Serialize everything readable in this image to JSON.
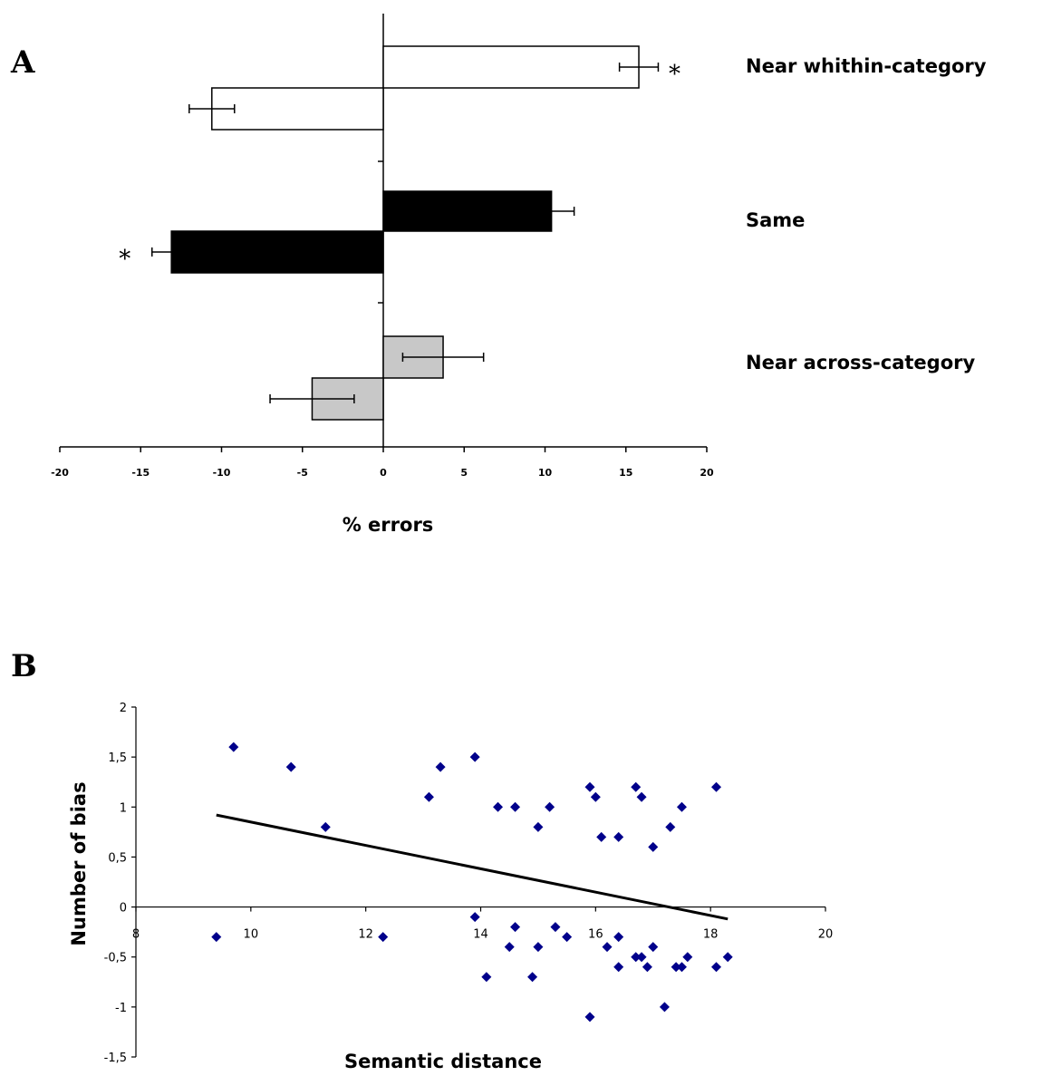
{
  "chart_data": [
    {
      "panel_label": "A",
      "type": "bar",
      "orientation": "horizontal",
      "xlabel": "% errors",
      "xlim": [
        -20,
        20
      ],
      "xticks": [
        "-20",
        "-15",
        "-10",
        "-5",
        "0",
        "5",
        "10",
        "15",
        "20"
      ],
      "categories": [
        "Near whithin-category",
        "Same",
        "Near across-category"
      ],
      "bars": [
        {
          "category": "Near whithin-category",
          "direction": "positive",
          "value": 15.8,
          "error": 1.2,
          "significant": true,
          "fill": "#ffffff"
        },
        {
          "category": "Near whithin-category",
          "direction": "negative",
          "value": -10.6,
          "error": 1.4,
          "significant": false,
          "fill": "#ffffff"
        },
        {
          "category": "Same",
          "direction": "positive",
          "value": 10.4,
          "error": 1.4,
          "significant": false,
          "fill": "#000000"
        },
        {
          "category": "Same",
          "direction": "negative",
          "value": -13.1,
          "error": 1.2,
          "significant": true,
          "fill": "#000000"
        },
        {
          "category": "Near across-category",
          "direction": "positive",
          "value": 3.7,
          "error": 2.5,
          "significant": false,
          "fill": "#c8c8c8"
        },
        {
          "category": "Near across-category",
          "direction": "negative",
          "value": -4.4,
          "error": 2.6,
          "significant": false,
          "fill": "#c8c8c8"
        }
      ],
      "significance_marker": "*"
    },
    {
      "panel_label": "B",
      "type": "scatter",
      "xlabel": "Semantic distance",
      "ylabel": "Number of bias",
      "xlim": [
        8,
        20
      ],
      "ylim": [
        -1.5,
        2
      ],
      "xticks": [
        "8",
        "10",
        "12",
        "14",
        "16",
        "18",
        "20"
      ],
      "yticks": [
        "2",
        "1,5",
        "1",
        "0,5",
        "0",
        "-0,5",
        "-1",
        "-1,5"
      ],
      "marker_color": "#00008b",
      "points": [
        {
          "x": 9.4,
          "y": -0.3
        },
        {
          "x": 9.7,
          "y": 1.6
        },
        {
          "x": 10.7,
          "y": 1.4
        },
        {
          "x": 11.3,
          "y": 0.8
        },
        {
          "x": 12.3,
          "y": -0.3
        },
        {
          "x": 13.1,
          "y": 1.1
        },
        {
          "x": 13.3,
          "y": 1.4
        },
        {
          "x": 13.9,
          "y": 1.5
        },
        {
          "x": 13.9,
          "y": -0.1
        },
        {
          "x": 14.1,
          "y": -0.7
        },
        {
          "x": 14.3,
          "y": 1.0
        },
        {
          "x": 14.5,
          "y": -0.4
        },
        {
          "x": 14.6,
          "y": -0.2
        },
        {
          "x": 14.6,
          "y": 1.0
        },
        {
          "x": 14.9,
          "y": -0.7
        },
        {
          "x": 15.0,
          "y": 0.8
        },
        {
          "x": 15.0,
          "y": -0.4
        },
        {
          "x": 15.2,
          "y": 1.0
        },
        {
          "x": 15.3,
          "y": -0.2
        },
        {
          "x": 15.5,
          "y": -0.3
        },
        {
          "x": 15.9,
          "y": 1.2
        },
        {
          "x": 15.9,
          "y": -1.1
        },
        {
          "x": 16.0,
          "y": 1.1
        },
        {
          "x": 16.1,
          "y": 0.7
        },
        {
          "x": 16.2,
          "y": -0.4
        },
        {
          "x": 16.4,
          "y": 0.7
        },
        {
          "x": 16.4,
          "y": -0.3
        },
        {
          "x": 16.4,
          "y": -0.6
        },
        {
          "x": 16.7,
          "y": 1.2
        },
        {
          "x": 16.7,
          "y": -0.5
        },
        {
          "x": 16.8,
          "y": 1.1
        },
        {
          "x": 16.8,
          "y": -0.5
        },
        {
          "x": 16.9,
          "y": -0.6
        },
        {
          "x": 17.0,
          "y": 0.6
        },
        {
          "x": 17.0,
          "y": -0.4
        },
        {
          "x": 17.2,
          "y": -1.0
        },
        {
          "x": 17.3,
          "y": 0.8
        },
        {
          "x": 17.4,
          "y": -0.6
        },
        {
          "x": 17.5,
          "y": -0.6
        },
        {
          "x": 17.5,
          "y": 1.0
        },
        {
          "x": 17.6,
          "y": -0.5
        },
        {
          "x": 18.1,
          "y": 1.2
        },
        {
          "x": 18.1,
          "y": -0.6
        },
        {
          "x": 18.3,
          "y": -0.5
        }
      ],
      "trendline": {
        "x": [
          9.4,
          18.3
        ],
        "y": [
          0.92,
          -0.12
        ],
        "color": "#000000"
      }
    }
  ]
}
